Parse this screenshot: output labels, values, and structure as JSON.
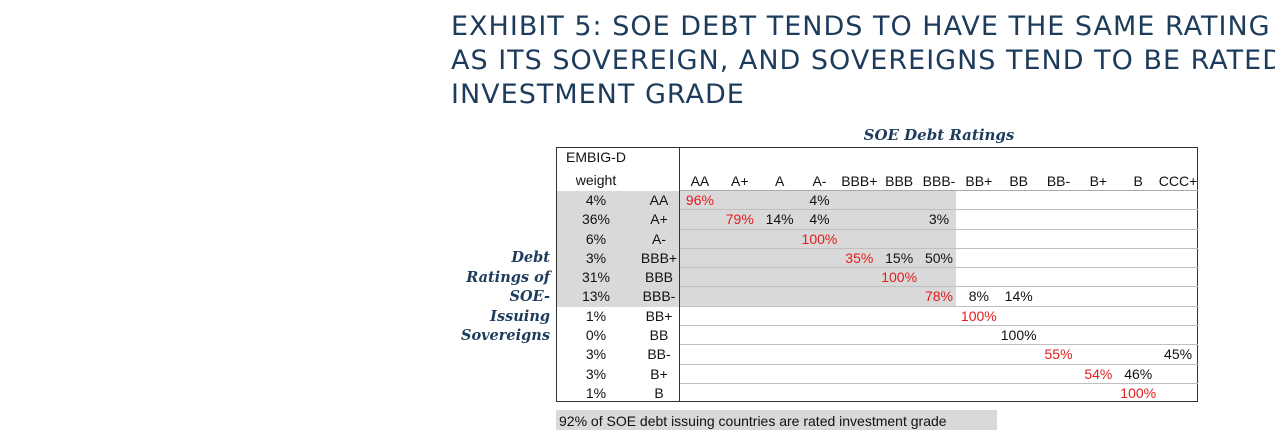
{
  "title_lines": [
    "EXHIBIT 5: SOE DEBT TENDS TO HAVE THE SAME RATING",
    "AS ITS SOVEREIGN, AND SOVEREIGNS TEND TO BE RATED",
    "INVESTMENT GRADE"
  ],
  "column_group_title": "SOE Debt Ratings",
  "row_group_label_lines": [
    "Debt",
    "Ratings of",
    "SOE-",
    "Issuing",
    "Sovereigns"
  ],
  "weight_header_lines": [
    "EMBIG-D",
    "weight"
  ],
  "rating_columns": [
    "AA",
    "A+",
    "A",
    "A-",
    "BBB+",
    "BBB",
    "BBB-",
    "BB+",
    "BB",
    "BB-",
    "B+",
    "B",
    "CCC+"
  ],
  "colors": {
    "title": "#1d3c5c",
    "highlight": "#e31b1b",
    "shade": "#d9d9d9"
  },
  "rows": [
    {
      "weight": "4%",
      "rating": "AA",
      "cells": [
        "96%",
        "",
        "",
        "4%",
        "",
        "",
        "",
        "",
        "",
        "",
        "",
        "",
        ""
      ],
      "highlight_col": 0
    },
    {
      "weight": "36%",
      "rating": "A+",
      "cells": [
        "",
        "79%",
        "14%",
        "4%",
        "",
        "",
        "3%",
        "",
        "",
        "",
        "",
        "",
        ""
      ],
      "highlight_col": 1
    },
    {
      "weight": "6%",
      "rating": "A-",
      "cells": [
        "",
        "",
        "",
        "100%",
        "",
        "",
        "",
        "",
        "",
        "",
        "",
        "",
        ""
      ],
      "highlight_col": 3
    },
    {
      "weight": "3%",
      "rating": "BBB+",
      "cells": [
        "",
        "",
        "",
        "",
        "35%",
        "15%",
        "50%",
        "",
        "",
        "",
        "",
        "",
        ""
      ],
      "highlight_col": 4
    },
    {
      "weight": "31%",
      "rating": "BBB",
      "cells": [
        "",
        "",
        "",
        "",
        "",
        "100%",
        "",
        "",
        "",
        "",
        "",
        "",
        ""
      ],
      "highlight_col": 5
    },
    {
      "weight": "13%",
      "rating": "BBB-",
      "cells": [
        "",
        "",
        "",
        "",
        "",
        "",
        "78%",
        "8%",
        "14%",
        "",
        "",
        "",
        ""
      ],
      "highlight_col": 6
    },
    {
      "weight": "1%",
      "rating": "BB+",
      "cells": [
        "",
        "",
        "",
        "",
        "",
        "",
        "",
        "100%",
        "",
        "",
        "",
        "",
        ""
      ],
      "highlight_col": 7
    },
    {
      "weight": "0%",
      "rating": "BB",
      "cells": [
        "",
        "",
        "",
        "",
        "",
        "",
        "",
        "",
        "100%",
        "",
        "",
        "",
        ""
      ],
      "highlight_col": -1
    },
    {
      "weight": "3%",
      "rating": "BB-",
      "cells": [
        "",
        "",
        "",
        "",
        "",
        "",
        "",
        "",
        "",
        "55%",
        "",
        "",
        "45%"
      ],
      "highlight_col": 9
    },
    {
      "weight": "3%",
      "rating": "B+",
      "cells": [
        "",
        "",
        "",
        "",
        "",
        "",
        "",
        "",
        "",
        "",
        "54%",
        "46%",
        ""
      ],
      "highlight_col": 10
    },
    {
      "weight": "1%",
      "rating": "B",
      "cells": [
        "",
        "",
        "",
        "",
        "",
        "",
        "",
        "",
        "",
        "",
        "",
        "100%",
        ""
      ],
      "highlight_col": 11
    }
  ],
  "footer_note": "92% of SOE debt issuing countries are rated investment grade"
}
